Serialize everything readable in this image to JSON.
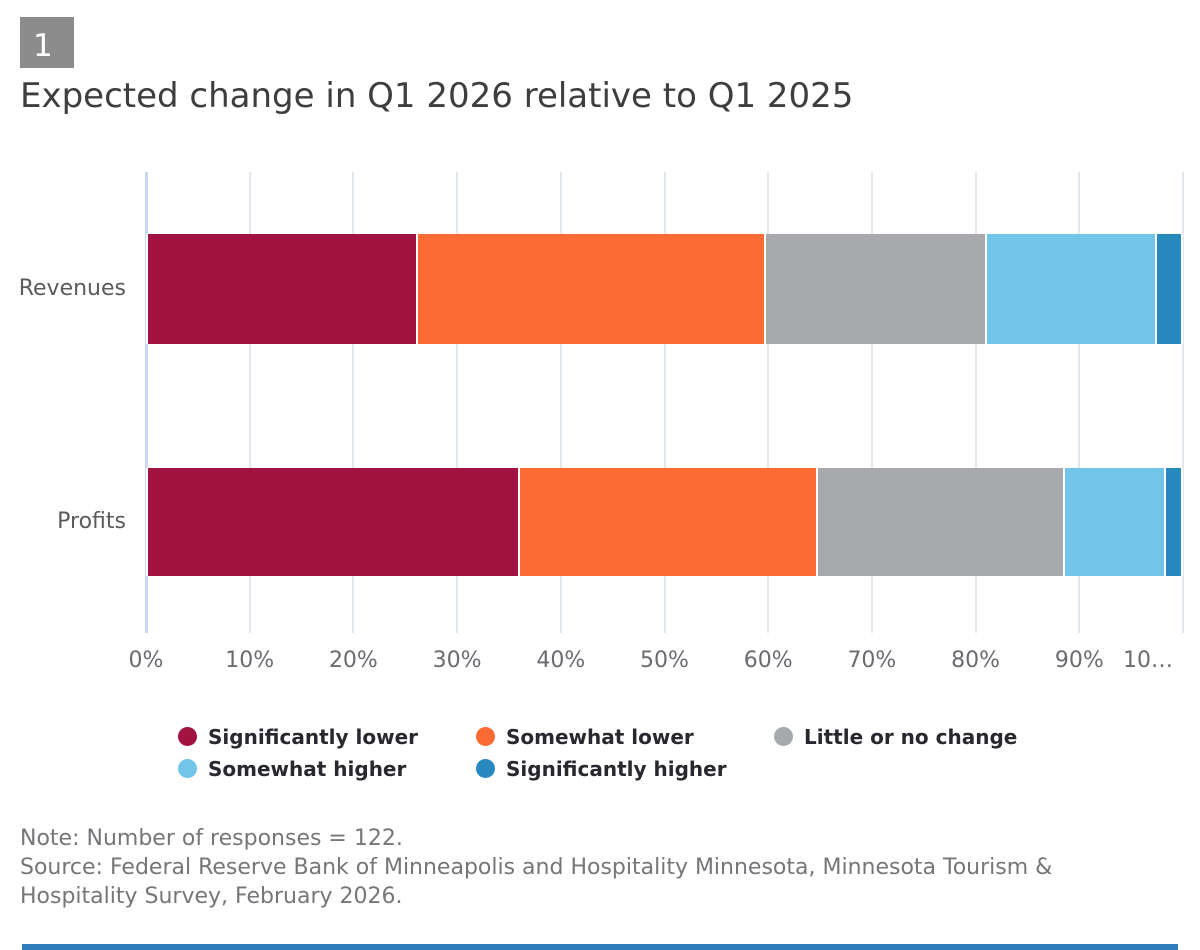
{
  "figure_badge": "1",
  "title": "Expected change in Q1 2026 relative to Q1 2025",
  "chart_data": {
    "type": "bar",
    "orientation": "horizontal",
    "stacked": true,
    "stack_unit": "percent",
    "categories": [
      "Revenues",
      "Profits"
    ],
    "series": [
      {
        "name": "Significantly lower",
        "color": "#A31342",
        "values": [
          26.2,
          36.1
        ]
      },
      {
        "name": "Somewhat lower",
        "color": "#FB6B33",
        "values": [
          33.6,
          28.7
        ]
      },
      {
        "name": "Little or no change",
        "color": "#A8A9AC",
        "values": [
          21.3,
          23.8
        ]
      },
      {
        "name": "Somewhat higher",
        "color": "#72C5E8",
        "values": [
          16.4,
          9.8
        ]
      },
      {
        "name": "Significantly higher",
        "color": "#2789BE",
        "values": [
          2.5,
          1.6
        ]
      }
    ],
    "x_axis": {
      "min": 0,
      "max": 100,
      "grid": true,
      "tick_labels": [
        "0%",
        "10%",
        "20%",
        "30%",
        "40%",
        "50%",
        "60%",
        "70%",
        "80%",
        "90%",
        "10…"
      ]
    },
    "legend_position": "bottom",
    "legend_rows": [
      [
        "Significantly lower",
        "Somewhat lower",
        "Little or no change"
      ],
      [
        "Somewhat higher",
        "Significantly higher"
      ]
    ]
  },
  "notes": {
    "note": "Note: Number of responses = 122.",
    "source": "Source: Federal Reserve Bank of Minneapolis and Hospitality Minnesota, Minnesota Tourism & Hospitality Survey, February 2026."
  },
  "colors": {
    "badge_bg": "#8C8C8C",
    "footer_strip": "#2E7CB9",
    "gridline": "#E3E7F0",
    "zero_gridline": "#C9D8EF"
  }
}
